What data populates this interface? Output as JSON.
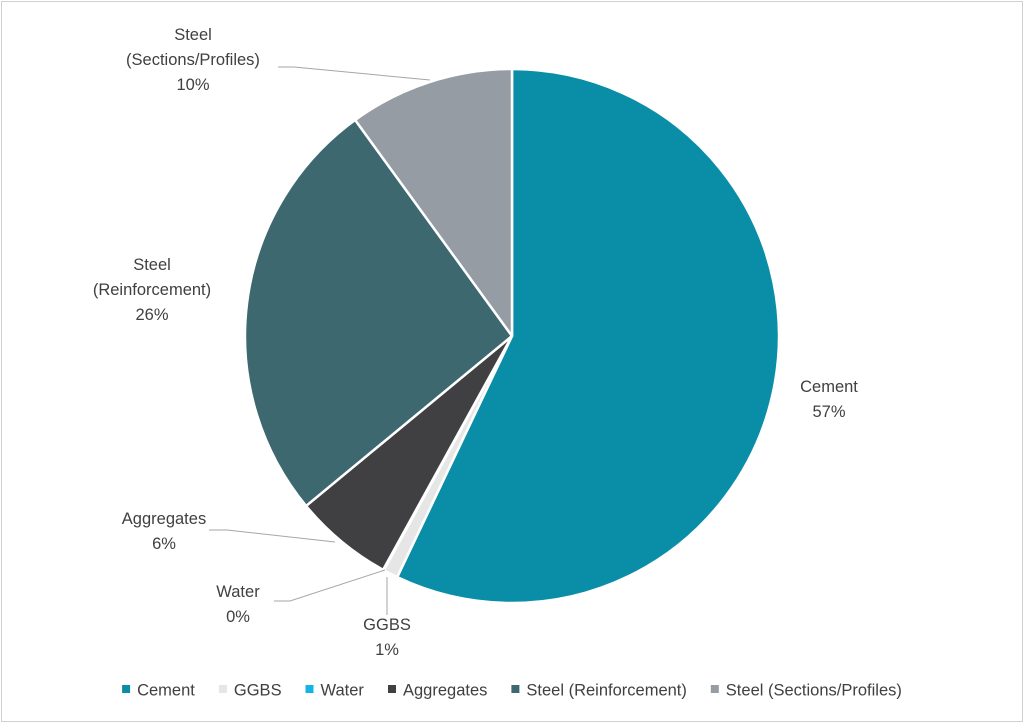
{
  "chart_data": {
    "type": "pie",
    "title": "",
    "slices": [
      {
        "name": "Cement",
        "value": 57.1,
        "pct_label": "57%",
        "label_lines": [
          "Cement",
          "57%"
        ],
        "color": "#0a8ea8"
      },
      {
        "name": "GGBS",
        "value": 0.9,
        "pct_label": "1%",
        "label_lines": [
          "GGBS",
          "1%"
        ],
        "color": "#e6e6e6"
      },
      {
        "name": "Water",
        "value": 0.05,
        "pct_label": "0%",
        "label_lines": [
          "Water",
          "0%"
        ],
        "color": "#14b4e6"
      },
      {
        "name": "Aggregates",
        "value": 6.0,
        "pct_label": "6%",
        "label_lines": [
          "Aggregates",
          "6%"
        ],
        "color": "#404042"
      },
      {
        "name": "Steel (Reinforcement)",
        "value": 26.0,
        "pct_label": "26%",
        "label_lines": [
          "Steel",
          "(Reinforcement)",
          "26%"
        ],
        "color": "#3d6870"
      },
      {
        "name": "Steel (Sections/Profiles)",
        "value": 10.0,
        "pct_label": "10%",
        "label_lines": [
          "Steel",
          "(Sections/Profiles)",
          "10%"
        ],
        "color": "#969ca3"
      }
    ],
    "legend": {
      "position": "bottom",
      "entries": [
        "Cement",
        "GGBS",
        "Water",
        "Aggregates",
        "Steel (Reinforcement)",
        "Steel (Sections/Profiles)"
      ]
    },
    "start_angle_deg": 0,
    "direction": "clockwise"
  }
}
